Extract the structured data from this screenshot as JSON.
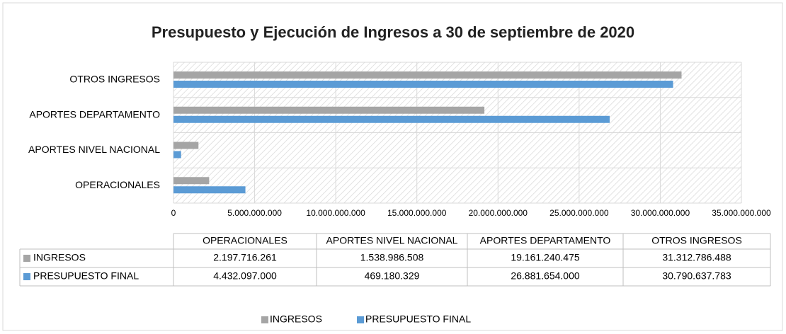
{
  "chart_data": {
    "type": "bar",
    "orientation": "horizontal",
    "title": "Presupuesto y Ejecución de Ingresos a 30 de septiembre de 2020",
    "categories": [
      "OPERACIONALES",
      "APORTES NIVEL NACIONAL",
      "APORTES DEPARTAMENTO",
      "OTROS INGRESOS"
    ],
    "series": [
      {
        "name": "INGRESOS",
        "color": "#a5a5a5",
        "values": [
          2197716261,
          1538986508,
          19161240475,
          31312786488
        ],
        "value_labels": [
          "2.197.716.261",
          "1.538.986.508",
          "19.161.240.475",
          "31.312.786.488"
        ]
      },
      {
        "name": "PRESUPUESTO FINAL",
        "color": "#5b9bd5",
        "values": [
          4432097000,
          469180329,
          26881654000,
          30790637783
        ],
        "value_labels": [
          "4.432.097.000",
          "469.180.329",
          "26.881.654.000",
          "30.790.637.783"
        ]
      }
    ],
    "xlim": [
      0,
      35000000000
    ],
    "xticks": [
      0,
      {
        "value": 5000000000,
        "label": "5.000.000.000"
      },
      {
        "value": 10000000000,
        "label": "10.000.000.000"
      },
      {
        "value": 15000000000,
        "label": "15.000.000.000"
      },
      {
        "value": 20000000000,
        "label": "20.000.000.000"
      },
      {
        "value": 25000000000,
        "label": "25.000.000.000"
      },
      {
        "value": 30000000000,
        "label": "30.000.000.000"
      },
      {
        "value": 35000000000,
        "label": "35.000.000.000"
      }
    ],
    "grid": true,
    "legend": "bottom"
  }
}
